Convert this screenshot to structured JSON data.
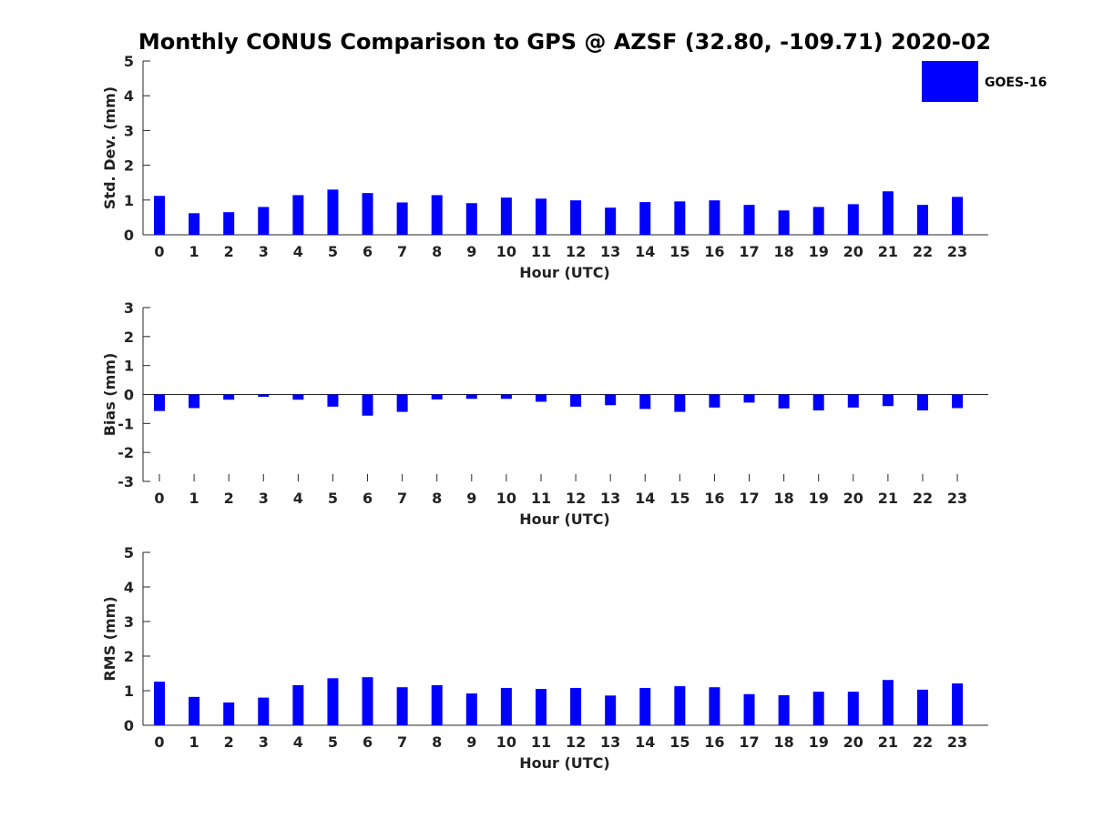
{
  "chart_data": {
    "type": "bar",
    "title": "Monthly CONUS Comparison to GPS @ AZSF (32.80, -109.71) 2020-02",
    "legend": {
      "placement": "top-right",
      "entries": [
        {
          "name": "GOES-16",
          "color": "#0000ff"
        }
      ]
    },
    "bar_color": "#0000ff",
    "categories": [
      "0",
      "1",
      "2",
      "3",
      "4",
      "5",
      "6",
      "7",
      "8",
      "9",
      "10",
      "11",
      "12",
      "13",
      "14",
      "15",
      "16",
      "17",
      "18",
      "19",
      "20",
      "21",
      "22",
      "23"
    ],
    "panels": [
      {
        "id": "stddev",
        "ylabel": "Std. Dev. (mm)",
        "xlabel": "Hour (UTC)",
        "ylim": [
          0,
          5
        ],
        "yticks": [
          "0",
          "1",
          "2",
          "3",
          "4",
          "5"
        ],
        "series": [
          {
            "name": "GOES-16",
            "values": [
              1.12,
              0.62,
              0.65,
              0.8,
              1.14,
              1.3,
              1.2,
              0.93,
              1.14,
              0.91,
              1.07,
              1.04,
              0.99,
              0.78,
              0.94,
              0.96,
              0.99,
              0.86,
              0.7,
              0.8,
              0.88,
              1.25,
              0.86,
              1.09
            ]
          }
        ]
      },
      {
        "id": "bias",
        "ylabel": "Bias (mm)",
        "xlabel": "Hour (UTC)",
        "ylim": [
          -3,
          3
        ],
        "yticks": [
          "-3",
          "-2",
          "-1",
          "0",
          "1",
          "2",
          "3"
        ],
        "series": [
          {
            "name": "GOES-16",
            "values": [
              -0.57,
              -0.47,
              -0.18,
              -0.08,
              -0.18,
              -0.42,
              -0.73,
              -0.6,
              -0.17,
              -0.15,
              -0.15,
              -0.25,
              -0.42,
              -0.37,
              -0.5,
              -0.6,
              -0.45,
              -0.28,
              -0.48,
              -0.55,
              -0.45,
              -0.4,
              -0.55,
              -0.47
            ]
          }
        ]
      },
      {
        "id": "rms",
        "ylabel": "RMS (mm)",
        "xlabel": "Hour (UTC)",
        "ylim": [
          0,
          5
        ],
        "yticks": [
          "0",
          "1",
          "2",
          "3",
          "4",
          "5"
        ],
        "series": [
          {
            "name": "GOES-16",
            "values": [
              1.26,
              0.82,
              0.66,
              0.8,
              1.16,
              1.36,
              1.39,
              1.1,
              1.16,
              0.92,
              1.08,
              1.05,
              1.08,
              0.86,
              1.08,
              1.13,
              1.1,
              0.9,
              0.87,
              0.97,
              0.97,
              1.31,
              1.03,
              1.21
            ]
          }
        ]
      }
    ]
  }
}
